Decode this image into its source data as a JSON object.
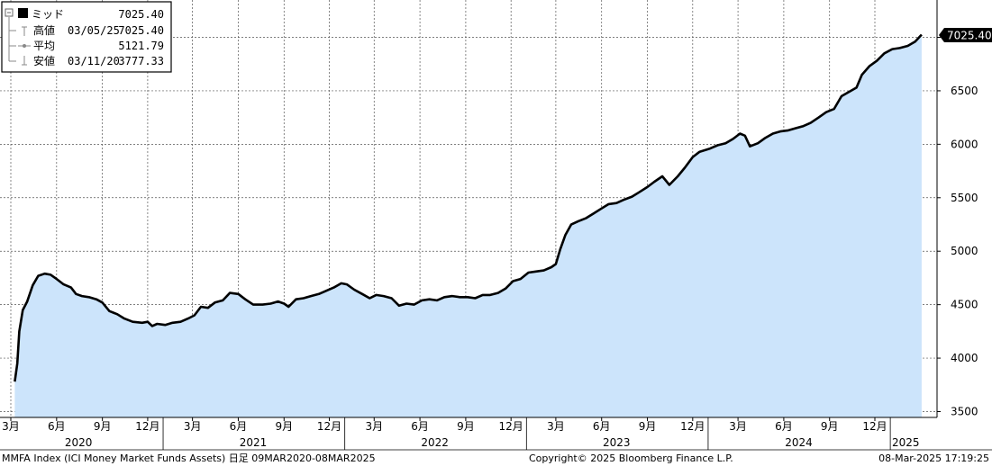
{
  "legend": {
    "rows": [
      {
        "label": "ミッド",
        "date": "",
        "value": "7025.40"
      },
      {
        "label": "高値",
        "date": "03/05/25",
        "value": "7025.40"
      },
      {
        "label": "平均",
        "date": "",
        "value": "5121.79"
      },
      {
        "label": "安値",
        "date": "03/11/20",
        "value": "3777.33"
      }
    ]
  },
  "last_value_badge": "7025.40",
  "footer": {
    "left": "MMFA Index (ICI Money Market Funds Assets) 日足 09MAR2020-08MAR2025",
    "center": "Copyright© 2025 Bloomberg Finance L.P.",
    "right": "08-Mar-2025 17:19:25"
  },
  "colors": {
    "line": "#000000",
    "fill": "#cce4fb",
    "grid": "#555555",
    "badge_bg": "#000000",
    "badge_text": "#ffffff"
  },
  "chart_data": {
    "type": "area",
    "title": "",
    "xlabel": "",
    "ylabel": "",
    "ylim": [
      3450,
      7300
    ],
    "xlim": [
      "2020-03-09",
      "2025-03-08"
    ],
    "y_ticks": [
      3500,
      4000,
      4500,
      5000,
      5500,
      6000,
      6500,
      7000
    ],
    "x_month_ticks": [
      {
        "date": "2020-03-01",
        "label": "3月"
      },
      {
        "date": "2020-06-01",
        "label": "6月"
      },
      {
        "date": "2020-09-01",
        "label": "9月"
      },
      {
        "date": "2020-12-01",
        "label": "12月"
      },
      {
        "date": "2021-03-01",
        "label": "3月"
      },
      {
        "date": "2021-06-01",
        "label": "6月"
      },
      {
        "date": "2021-09-01",
        "label": "9月"
      },
      {
        "date": "2021-12-01",
        "label": "12月"
      },
      {
        "date": "2022-03-01",
        "label": "3月"
      },
      {
        "date": "2022-06-01",
        "label": "6月"
      },
      {
        "date": "2022-09-01",
        "label": "9月"
      },
      {
        "date": "2022-12-01",
        "label": "12月"
      },
      {
        "date": "2023-03-01",
        "label": "3月"
      },
      {
        "date": "2023-06-01",
        "label": "6月"
      },
      {
        "date": "2023-09-01",
        "label": "9月"
      },
      {
        "date": "2023-12-01",
        "label": "12月"
      },
      {
        "date": "2024-03-01",
        "label": "3月"
      },
      {
        "date": "2024-06-01",
        "label": "6月"
      },
      {
        "date": "2024-09-01",
        "label": "9月"
      },
      {
        "date": "2024-12-01",
        "label": "12月"
      }
    ],
    "x_year_labels": [
      {
        "date": "2020-07-15",
        "label": "2020"
      },
      {
        "date": "2021-07-01",
        "label": "2021"
      },
      {
        "date": "2022-07-01",
        "label": "2022"
      },
      {
        "date": "2023-07-01",
        "label": "2023"
      },
      {
        "date": "2024-07-01",
        "label": "2024"
      },
      {
        "date": "2025-02-01",
        "label": "2025"
      }
    ],
    "year_boundaries": [
      "2021-01-01",
      "2022-01-01",
      "2023-01-01",
      "2024-01-01",
      "2025-01-01"
    ],
    "series": [
      {
        "name": "MMFA Index",
        "points": [
          [
            "2020-03-09",
            3780
          ],
          [
            "2020-03-14",
            3950
          ],
          [
            "2020-03-18",
            4250
          ],
          [
            "2020-03-25",
            4450
          ],
          [
            "2020-04-03",
            4530
          ],
          [
            "2020-04-14",
            4680
          ],
          [
            "2020-04-25",
            4770
          ],
          [
            "2020-05-08",
            4790
          ],
          [
            "2020-05-20",
            4780
          ],
          [
            "2020-06-01",
            4740
          ],
          [
            "2020-06-15",
            4690
          ],
          [
            "2020-06-30",
            4660
          ],
          [
            "2020-07-10",
            4600
          ],
          [
            "2020-07-22",
            4580
          ],
          [
            "2020-08-05",
            4570
          ],
          [
            "2020-08-20",
            4550
          ],
          [
            "2020-09-01",
            4520
          ],
          [
            "2020-09-15",
            4440
          ],
          [
            "2020-10-01",
            4410
          ],
          [
            "2020-10-15",
            4370
          ],
          [
            "2020-11-01",
            4340
          ],
          [
            "2020-11-20",
            4330
          ],
          [
            "2020-12-01",
            4340
          ],
          [
            "2020-12-10",
            4300
          ],
          [
            "2020-12-20",
            4320
          ],
          [
            "2021-01-05",
            4310
          ],
          [
            "2021-01-20",
            4330
          ],
          [
            "2021-02-05",
            4340
          ],
          [
            "2021-02-20",
            4370
          ],
          [
            "2021-03-05",
            4400
          ],
          [
            "2021-03-18",
            4480
          ],
          [
            "2021-04-01",
            4470
          ],
          [
            "2021-04-15",
            4520
          ],
          [
            "2021-05-01",
            4540
          ],
          [
            "2021-05-15",
            4610
          ],
          [
            "2021-06-01",
            4600
          ],
          [
            "2021-06-15",
            4550
          ],
          [
            "2021-07-01",
            4500
          ],
          [
            "2021-07-20",
            4500
          ],
          [
            "2021-08-05",
            4510
          ],
          [
            "2021-08-20",
            4530
          ],
          [
            "2021-09-01",
            4510
          ],
          [
            "2021-09-10",
            4480
          ],
          [
            "2021-09-25",
            4550
          ],
          [
            "2021-10-10",
            4560
          ],
          [
            "2021-10-25",
            4580
          ],
          [
            "2021-11-10",
            4600
          ],
          [
            "2021-11-25",
            4630
          ],
          [
            "2021-12-10",
            4660
          ],
          [
            "2021-12-25",
            4700
          ],
          [
            "2022-01-05",
            4690
          ],
          [
            "2022-01-20",
            4640
          ],
          [
            "2022-02-05",
            4600
          ],
          [
            "2022-02-20",
            4560
          ],
          [
            "2022-03-05",
            4590
          ],
          [
            "2022-03-20",
            4580
          ],
          [
            "2022-04-05",
            4560
          ],
          [
            "2022-04-20",
            4490
          ],
          [
            "2022-05-05",
            4510
          ],
          [
            "2022-05-20",
            4500
          ],
          [
            "2022-06-05",
            4540
          ],
          [
            "2022-06-20",
            4550
          ],
          [
            "2022-07-05",
            4540
          ],
          [
            "2022-07-20",
            4570
          ],
          [
            "2022-08-05",
            4580
          ],
          [
            "2022-08-20",
            4570
          ],
          [
            "2022-09-05",
            4570
          ],
          [
            "2022-09-20",
            4560
          ],
          [
            "2022-10-05",
            4590
          ],
          [
            "2022-10-20",
            4590
          ],
          [
            "2022-11-05",
            4610
          ],
          [
            "2022-11-20",
            4650
          ],
          [
            "2022-12-05",
            4720
          ],
          [
            "2022-12-20",
            4740
          ],
          [
            "2023-01-05",
            4800
          ],
          [
            "2023-01-20",
            4810
          ],
          [
            "2023-02-05",
            4820
          ],
          [
            "2023-02-20",
            4850
          ],
          [
            "2023-03-01",
            4880
          ],
          [
            "2023-03-10",
            5020
          ],
          [
            "2023-03-20",
            5150
          ],
          [
            "2023-04-01",
            5250
          ],
          [
            "2023-04-15",
            5280
          ],
          [
            "2023-05-01",
            5310
          ],
          [
            "2023-05-15",
            5350
          ],
          [
            "2023-06-01",
            5400
          ],
          [
            "2023-06-15",
            5440
          ],
          [
            "2023-07-01",
            5450
          ],
          [
            "2023-07-15",
            5480
          ],
          [
            "2023-08-01",
            5510
          ],
          [
            "2023-08-15",
            5550
          ],
          [
            "2023-09-01",
            5600
          ],
          [
            "2023-09-15",
            5650
          ],
          [
            "2023-10-01",
            5700
          ],
          [
            "2023-10-15",
            5620
          ],
          [
            "2023-11-01",
            5700
          ],
          [
            "2023-11-15",
            5780
          ],
          [
            "2023-12-01",
            5880
          ],
          [
            "2023-12-15",
            5930
          ],
          [
            "2024-01-05",
            5960
          ],
          [
            "2024-01-20",
            5990
          ],
          [
            "2024-02-05",
            6010
          ],
          [
            "2024-02-20",
            6050
          ],
          [
            "2024-03-05",
            6100
          ],
          [
            "2024-03-15",
            6080
          ],
          [
            "2024-03-25",
            5980
          ],
          [
            "2024-04-10",
            6010
          ],
          [
            "2024-04-25",
            6060
          ],
          [
            "2024-05-10",
            6100
          ],
          [
            "2024-05-25",
            6120
          ],
          [
            "2024-06-10",
            6130
          ],
          [
            "2024-06-25",
            6150
          ],
          [
            "2024-07-10",
            6170
          ],
          [
            "2024-07-25",
            6200
          ],
          [
            "2024-08-10",
            6250
          ],
          [
            "2024-08-25",
            6300
          ],
          [
            "2024-09-10",
            6330
          ],
          [
            "2024-09-25",
            6450
          ],
          [
            "2024-10-10",
            6490
          ],
          [
            "2024-10-25",
            6530
          ],
          [
            "2024-11-05",
            6650
          ],
          [
            "2024-11-20",
            6730
          ],
          [
            "2024-12-05",
            6780
          ],
          [
            "2024-12-20",
            6850
          ],
          [
            "2025-01-05",
            6890
          ],
          [
            "2025-01-20",
            6900
          ],
          [
            "2025-02-05",
            6920
          ],
          [
            "2025-02-20",
            6960
          ],
          [
            "2025-03-05",
            7025.4
          ]
        ]
      }
    ]
  }
}
